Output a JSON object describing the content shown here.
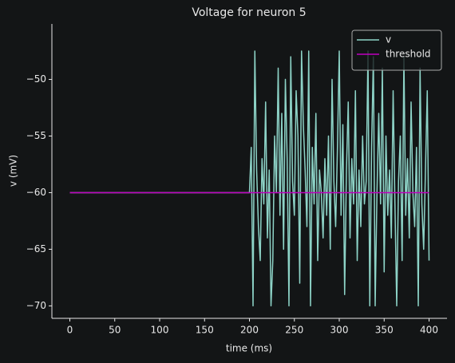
{
  "chart_data": {
    "type": "line",
    "title": "Voltage for neuron 5",
    "x_label": "time (ms)",
    "y_label": "v (mV)",
    "xlim": [
      -20,
      420
    ],
    "ylim": [
      -71.1,
      -45.1
    ],
    "xticks": [
      0,
      50,
      100,
      150,
      200,
      250,
      300,
      350,
      400
    ],
    "yticks": [
      {
        "value": -70,
        "label": "−70"
      },
      {
        "value": -65,
        "label": "−65"
      },
      {
        "value": -60,
        "label": "−60"
      },
      {
        "value": -55,
        "label": "−55"
      },
      {
        "value": -50,
        "label": "−50"
      }
    ],
    "legend": "upper right",
    "series": [
      {
        "name": "v",
        "color": "#8dd3c7",
        "x": [
          0,
          200,
          202,
          204,
          206,
          208,
          210,
          212,
          214,
          216,
          218,
          220,
          222,
          224,
          226,
          228,
          230,
          232,
          234,
          236,
          238,
          240,
          242,
          244,
          246,
          248,
          250,
          252,
          254,
          256,
          258,
          260,
          262,
          264,
          266,
          268,
          270,
          272,
          274,
          276,
          278,
          280,
          282,
          284,
          286,
          288,
          290,
          292,
          294,
          296,
          298,
          300,
          302,
          304,
          306,
          308,
          310,
          312,
          314,
          316,
          318,
          320,
          322,
          324,
          326,
          328,
          330,
          332,
          334,
          336,
          338,
          340,
          342,
          344,
          346,
          348,
          350,
          352,
          354,
          356,
          358,
          360,
          362,
          364,
          366,
          368,
          370,
          372,
          374,
          376,
          378,
          380,
          382,
          384,
          386,
          388,
          390,
          392,
          394,
          396,
          398,
          400
        ],
        "values": [
          -60,
          -60,
          -56,
          -70,
          -47.5,
          -58,
          -63,
          -66,
          -57,
          -61,
          -52,
          -64,
          -58,
          -70,
          -66,
          -55,
          -60,
          -49,
          -62,
          -53,
          -65,
          -50,
          -57,
          -70,
          -48,
          -59,
          -62,
          -51,
          -55,
          -68,
          -47.5,
          -54,
          -58,
          -63,
          -47.5,
          -70,
          -56,
          -61,
          -53,
          -66,
          -58,
          -60,
          -64,
          -57,
          -62,
          -55,
          -65,
          -50,
          -59,
          -63,
          -56,
          -47.5,
          -62,
          -54,
          -69,
          -58,
          -52,
          -64,
          -57,
          -61,
          -51,
          -66,
          -58,
          -63,
          -55,
          -61,
          -59,
          -47.5,
          -70,
          -56,
          -48,
          -70,
          -60,
          -53,
          -61,
          -49,
          -67,
          -55,
          -62,
          -58,
          -64,
          -51,
          -61,
          -70,
          -59,
          -55,
          -66,
          -48,
          -62,
          -57,
          -64,
          -52,
          -60,
          -63,
          -56,
          -70,
          -49,
          -61,
          -65,
          -58,
          -51,
          -66
        ]
      },
      {
        "name": "threshold",
        "color": "#bf00bf",
        "x": [
          0,
          400
        ],
        "values": [
          -60,
          -60
        ]
      }
    ]
  }
}
